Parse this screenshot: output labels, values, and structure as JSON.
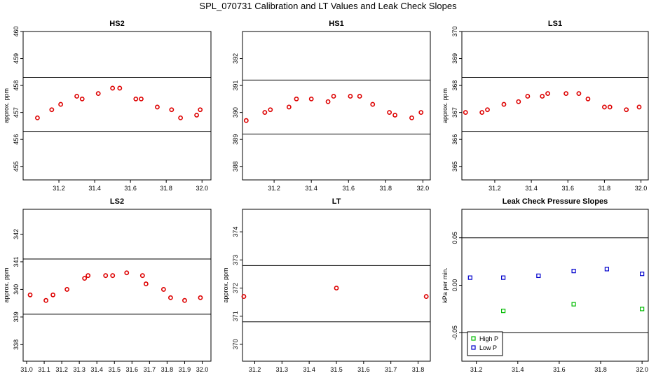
{
  "title": "SPL_070731  Calibration and LT Values and Leak Check Slopes",
  "chart_data": [
    {
      "type": "scatter",
      "title": "HS2",
      "ylabel": "approx. ppm",
      "xlim": [
        31.0,
        32.05
      ],
      "ylim": [
        454.5,
        460.0
      ],
      "xticks": [
        "31.2",
        "31.4",
        "31.6",
        "31.8",
        "32.0"
      ],
      "xtick_values": [
        31.2,
        31.4,
        31.6,
        31.8,
        32.0
      ],
      "yticks": [
        "455",
        "456",
        "457",
        "458",
        "459",
        "460"
      ],
      "ytick_values": [
        455,
        456,
        457,
        458,
        459,
        460
      ],
      "hlines": [
        458.3,
        456.3
      ],
      "marker": "circle",
      "series": [
        {
          "color": "#dd0000",
          "x": [
            31.08,
            31.16,
            31.21,
            31.3,
            31.33,
            31.42,
            31.5,
            31.54,
            31.63,
            31.66,
            31.75,
            31.83,
            31.88,
            31.97,
            31.99
          ],
          "y": [
            456.8,
            457.1,
            457.3,
            457.6,
            457.5,
            457.7,
            457.9,
            457.9,
            457.5,
            457.5,
            457.2,
            457.1,
            456.8,
            456.9,
            457.1
          ]
        }
      ]
    },
    {
      "type": "scatter",
      "title": "HS1",
      "ylabel": "",
      "xlim": [
        31.03,
        32.04
      ],
      "ylim": [
        387.5,
        393.0
      ],
      "xticks": [
        "31.2",
        "31.4",
        "31.6",
        "31.8",
        "32.0"
      ],
      "xtick_values": [
        31.2,
        31.4,
        31.6,
        31.8,
        32.0
      ],
      "yticks": [
        "388",
        "389",
        "390",
        "391",
        "392"
      ],
      "ytick_values": [
        388,
        389,
        390,
        391,
        392
      ],
      "hlines": [
        391.2,
        389.2
      ],
      "marker": "circle",
      "series": [
        {
          "color": "#dd0000",
          "x": [
            31.05,
            31.15,
            31.18,
            31.28,
            31.32,
            31.4,
            31.49,
            31.52,
            31.61,
            31.66,
            31.73,
            31.82,
            31.85,
            31.94,
            31.99
          ],
          "y": [
            389.7,
            390.0,
            390.1,
            390.2,
            390.5,
            390.5,
            390.4,
            390.6,
            390.6,
            390.6,
            390.3,
            390.0,
            389.9,
            389.8,
            390.0
          ]
        }
      ]
    },
    {
      "type": "scatter",
      "title": "LS1",
      "ylabel": "approx. ppm",
      "xlim": [
        31.02,
        32.04
      ],
      "ylim": [
        364.5,
        370.0
      ],
      "xticks": [
        "31.2",
        "31.4",
        "31.6",
        "31.8",
        "32.0"
      ],
      "xtick_values": [
        31.2,
        31.4,
        31.6,
        31.8,
        32.0
      ],
      "yticks": [
        "365",
        "366",
        "367",
        "368",
        "369",
        "370"
      ],
      "ytick_values": [
        365,
        366,
        367,
        368,
        369,
        370
      ],
      "hlines": [
        368.3,
        366.3
      ],
      "marker": "circle",
      "series": [
        {
          "color": "#dd0000",
          "x": [
            31.04,
            31.13,
            31.16,
            31.25,
            31.33,
            31.38,
            31.46,
            31.49,
            31.59,
            31.66,
            31.71,
            31.8,
            31.83,
            31.92,
            31.99
          ],
          "y": [
            367.0,
            367.0,
            367.1,
            367.3,
            367.4,
            367.6,
            367.6,
            367.7,
            367.7,
            367.7,
            367.5,
            367.2,
            367.2,
            367.1,
            367.2
          ]
        }
      ]
    },
    {
      "type": "scatter",
      "title": "LS2",
      "ylabel": "approx. ppm",
      "xlim": [
        30.98,
        32.05
      ],
      "ylim": [
        337.4,
        342.9
      ],
      "xticks": [
        "31.0",
        "31.1",
        "31.2",
        "31.3",
        "31.4",
        "31.5",
        "31.6",
        "31.7",
        "31.8",
        "31.9",
        "32.0"
      ],
      "xtick_values": [
        31.0,
        31.1,
        31.2,
        31.3,
        31.4,
        31.5,
        31.6,
        31.7,
        31.8,
        31.9,
        32.0
      ],
      "yticks": [
        "338",
        "339",
        "340",
        "341",
        "342"
      ],
      "ytick_values": [
        338,
        339,
        340,
        341,
        342
      ],
      "hlines": [
        341.1,
        339.1
      ],
      "marker": "circle",
      "series": [
        {
          "color": "#dd0000",
          "x": [
            31.02,
            31.11,
            31.15,
            31.23,
            31.33,
            31.35,
            31.45,
            31.49,
            31.57,
            31.66,
            31.68,
            31.78,
            31.82,
            31.9,
            31.99
          ],
          "y": [
            339.8,
            339.6,
            339.8,
            340.0,
            340.4,
            340.5,
            340.5,
            340.5,
            340.6,
            340.5,
            340.2,
            340.0,
            339.7,
            339.6,
            339.7
          ]
        }
      ]
    },
    {
      "type": "scatter",
      "title": "LT",
      "ylabel": "approx. ppm",
      "xlim": [
        31.155,
        31.845
      ],
      "ylim": [
        369.4,
        374.8
      ],
      "xticks": [
        "31.2",
        "31.3",
        "31.4",
        "31.5",
        "31.6",
        "31.7",
        "31.8"
      ],
      "xtick_values": [
        31.2,
        31.3,
        31.4,
        31.5,
        31.6,
        31.7,
        31.8
      ],
      "yticks": [
        "370",
        "371",
        "372",
        "373",
        "374"
      ],
      "ytick_values": [
        370,
        371,
        372,
        373,
        374
      ],
      "hlines": [
        372.8,
        370.8
      ],
      "marker": "circle",
      "series": [
        {
          "color": "#dd0000",
          "x": [
            31.16,
            31.5,
            31.83
          ],
          "y": [
            371.7,
            372.0,
            371.7
          ]
        }
      ]
    },
    {
      "type": "scatter",
      "title": "Leak Check Pressure Slopes",
      "ylabel": "kPa per min.",
      "xlim": [
        31.13,
        32.03
      ],
      "ylim": [
        -0.08,
        0.08
      ],
      "xticks": [
        "31.2",
        "31.4",
        "31.6",
        "31.8",
        "32.0"
      ],
      "xtick_values": [
        31.2,
        31.4,
        31.6,
        31.8,
        32.0
      ],
      "yticks": [
        "-0.05",
        "0.00",
        "0.05"
      ],
      "ytick_values": [
        -0.05,
        0.0,
        0.05
      ],
      "hlines": [
        0.05,
        -0.05
      ],
      "marker": "square",
      "legend": {
        "position": "bottom-left",
        "entries": [
          "High P",
          "Low P"
        ]
      },
      "series": [
        {
          "name": "High P",
          "color": "#00bb00",
          "x": [
            31.33,
            31.67,
            32.0
          ],
          "y": [
            -0.027,
            -0.02,
            -0.025
          ]
        },
        {
          "name": "Low P",
          "color": "#0000cc",
          "x": [
            31.17,
            31.33,
            31.5,
            31.67,
            31.83,
            32.0
          ],
          "y": [
            0.008,
            0.008,
            0.01,
            0.015,
            0.017,
            0.012
          ]
        }
      ]
    }
  ]
}
